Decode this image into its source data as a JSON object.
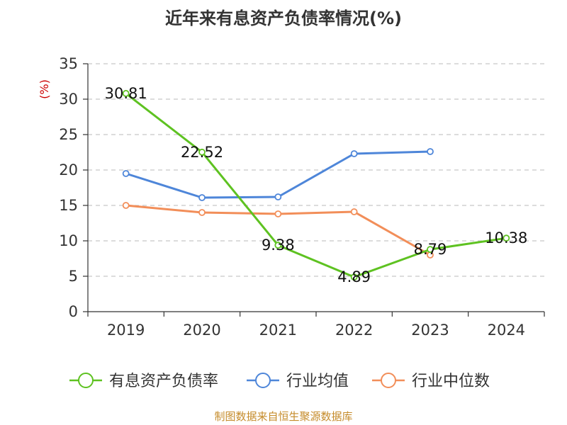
{
  "chart_data": {
    "type": "line",
    "title": "近年来有息资产负债率情况(%)",
    "ylabel": "(%)",
    "xlabel": "",
    "categories": [
      "2019",
      "2020",
      "2021",
      "2022",
      "2023",
      "2024"
    ],
    "ylim": [
      0,
      35
    ],
    "yticks": [
      0,
      5,
      10,
      15,
      20,
      25,
      30,
      35
    ],
    "grid": true,
    "legend_position": "bottom",
    "series": [
      {
        "name": "有息资产负债率",
        "color": "#5ec221",
        "values": [
          30.81,
          22.52,
          9.38,
          4.89,
          8.79,
          10.38
        ],
        "labels": [
          "30.81",
          "22.52",
          "9.38",
          "4.89",
          "8.79",
          "10.38"
        ]
      },
      {
        "name": "行业均值",
        "color": "#4e86d9",
        "values": [
          19.5,
          16.1,
          16.2,
          22.3,
          22.6,
          null
        ]
      },
      {
        "name": "行业中位数",
        "color": "#f28e59",
        "values": [
          15.0,
          14.0,
          13.8,
          14.1,
          8.0,
          null
        ]
      }
    ]
  },
  "source_text": "制图数据来自恒生聚源数据库"
}
